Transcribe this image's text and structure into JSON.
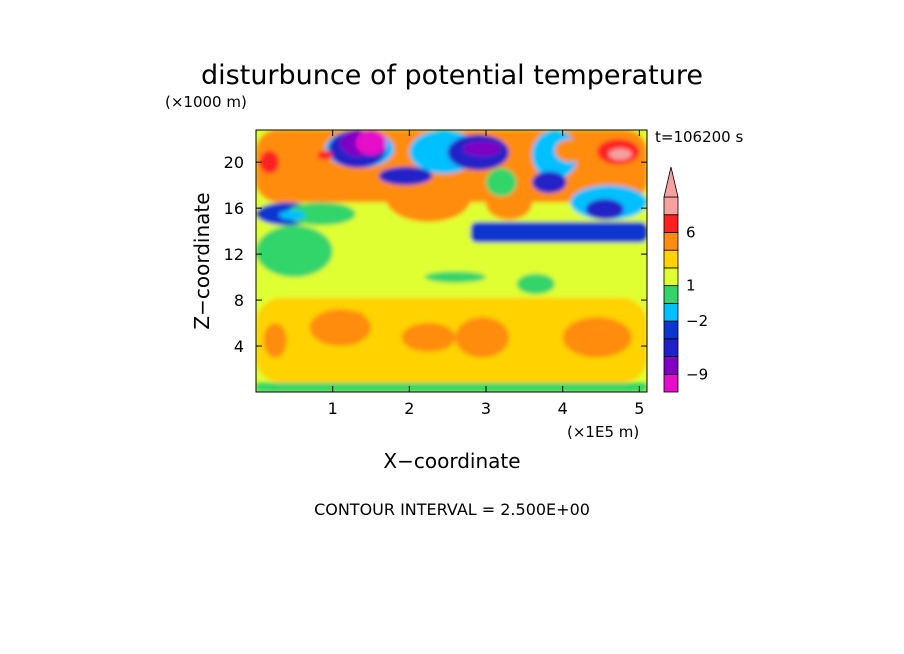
{
  "chart_data": {
    "type": "heatmap",
    "title": "disturbunce of potential temperature",
    "time_label": "t=106200 s",
    "xlabel": "X−coordinate",
    "ylabel": "Z−coordinate",
    "x_unit": "(×1E5 m)",
    "y_unit": "(×1000 m)",
    "footer": "CONTOUR INTERVAL = 2.500E+00",
    "x_ticks": [
      "1",
      "2",
      "3",
      "4",
      "5"
    ],
    "y_ticks": [
      "4",
      "8",
      "12",
      "16",
      "20"
    ],
    "x_tick_values": [
      1,
      2,
      3,
      4,
      5
    ],
    "y_tick_values": [
      4,
      8,
      12,
      16,
      20
    ],
    "xlim": [
      0,
      5.1
    ],
    "ylim": [
      0,
      22.8
    ],
    "x_extent_label": "0 to 5.1 (×1E5 m)",
    "colorbar": {
      "tick_labels": [
        "6",
        "1",
        "−2",
        "−9"
      ],
      "tick_values": [
        6,
        1,
        -2,
        -9
      ],
      "levels": [
        -11.5,
        -9,
        -6.5,
        -4,
        -2,
        -1,
        1,
        2,
        3.5,
        6,
        8.5
      ],
      "colors": [
        "#e60ecb",
        "#7f00c4",
        "#2020c8",
        "#0a36d0",
        "#00c0ff",
        "#33d56a",
        "#dfff30",
        "#ffd200",
        "#ff8c10",
        "#ff2020",
        "#f6a0a0"
      ],
      "extend": "max"
    },
    "colors": {
      "neg_magenta": "#e60ecb",
      "neg_purple": "#7f00c4",
      "neg_blue": "#0a36d0",
      "cyan": "#00c0ff",
      "green": "#33d56a",
      "yellow": "#dfff30",
      "orange": "#ff8c10",
      "red": "#ff2020",
      "pink": "#f6a0a0"
    },
    "regions": [
      {
        "level": 1.2,
        "x": [
          0,
          5.1
        ],
        "z": [
          0,
          22.8
        ]
      },
      {
        "level": 0,
        "x": [
          0,
          1.0
        ],
        "z": [
          10.0,
          14.5
        ]
      },
      {
        "level": 0,
        "x": [
          2.2,
          3.0
        ],
        "z": [
          9.5,
          10.5
        ]
      },
      {
        "level": 0,
        "x": [
          3.4,
          3.9
        ],
        "z": [
          8.5,
          10.3
        ]
      },
      {
        "level": 0,
        "x": [
          0,
          5.1
        ],
        "z": [
          0,
          0.8
        ]
      },
      {
        "level": 2.5,
        "x": [
          0,
          5.1
        ],
        "z": [
          0.8,
          8.2
        ]
      },
      {
        "level": 3.5,
        "x": [
          0.7,
          1.5
        ],
        "z": [
          4.0,
          7.2
        ]
      },
      {
        "level": 3.5,
        "x": [
          1.9,
          2.6
        ],
        "z": [
          3.5,
          6.0
        ]
      },
      {
        "level": 3.5,
        "x": [
          2.6,
          3.3
        ],
        "z": [
          3.0,
          6.5
        ]
      },
      {
        "level": 3.5,
        "x": [
          4.0,
          4.9
        ],
        "z": [
          3.0,
          6.5
        ]
      },
      {
        "level": 3.5,
        "x": [
          0.1,
          0.4
        ],
        "z": [
          3.0,
          6.0
        ]
      },
      {
        "level": 4.5,
        "x": [
          1.2,
          1.4
        ],
        "z": [
          6.2,
          7.0
        ]
      },
      {
        "level": -2.2,
        "x": [
          2.8,
          5.1
        ],
        "z": [
          13.0,
          14.8
        ]
      },
      {
        "level": -2.2,
        "x": [
          0,
          0.8
        ],
        "z": [
          14.5,
          16.5
        ]
      },
      {
        "level": 0,
        "x": [
          0.4,
          1.3
        ],
        "z": [
          14.5,
          16.5
        ]
      },
      {
        "level": 3.5,
        "x": [
          0,
          5.1
        ],
        "z": [
          16.5,
          22.8
        ]
      },
      {
        "level": 5.0,
        "x": [
          0.1,
          0.7
        ],
        "z": [
          17.5,
          21.0
        ]
      },
      {
        "level": 5.0,
        "x": [
          1.7,
          2.8
        ],
        "z": [
          14.8,
          18.8
        ]
      },
      {
        "level": 5.0,
        "x": [
          3.0,
          3.6
        ],
        "z": [
          15.0,
          17.8
        ]
      },
      {
        "level": -1.5,
        "x": [
          0.9,
          1.8
        ],
        "z": [
          19.5,
          22.8
        ]
      },
      {
        "level": -1.5,
        "x": [
          2.0,
          2.9
        ],
        "z": [
          19.0,
          22.8
        ]
      },
      {
        "level": -1.5,
        "x": [
          3.6,
          4.2
        ],
        "z": [
          18.5,
          22.8
        ]
      },
      {
        "level": -1.5,
        "x": [
          4.1,
          5.1
        ],
        "z": [
          15.0,
          18.0
        ]
      },
      {
        "level": -5.0,
        "x": [
          0.95,
          1.7
        ],
        "z": [
          19.5,
          22.8
        ]
      },
      {
        "level": -5.0,
        "x": [
          1.6,
          2.3
        ],
        "z": [
          18.0,
          19.6
        ]
      },
      {
        "level": -5.0,
        "x": [
          2.5,
          3.3
        ],
        "z": [
          19.3,
          22.4
        ]
      },
      {
        "level": -5.0,
        "x": [
          3.6,
          4.05
        ],
        "z": [
          17.3,
          19.2
        ]
      },
      {
        "level": -5.0,
        "x": [
          4.3,
          4.8
        ],
        "z": [
          15.0,
          16.8
        ]
      },
      {
        "level": -8.0,
        "x": [
          1.1,
          1.55
        ],
        "z": [
          20.5,
          22.8
        ]
      },
      {
        "level": -8.0,
        "x": [
          2.7,
          3.2
        ],
        "z": [
          20.5,
          21.8
        ]
      },
      {
        "level": -10.5,
        "x": [
          1.3,
          1.7
        ],
        "z": [
          20.6,
          22.8
        ]
      },
      {
        "level": -1.5,
        "x": [
          0.3,
          0.65
        ],
        "z": [
          15.0,
          15.8
        ]
      },
      {
        "level": 0,
        "x": [
          3.0,
          3.4
        ],
        "z": [
          17.0,
          19.5
        ]
      },
      {
        "level": 5.0,
        "x": [
          4.35,
          5.1
        ],
        "z": [
          19.0,
          22.8
        ]
      },
      {
        "level": 7.0,
        "x": [
          4.45,
          5.0
        ],
        "z": [
          19.8,
          22.0
        ]
      },
      {
        "level": 9.0,
        "x": [
          4.6,
          4.9
        ],
        "z": [
          20.2,
          21.2
        ]
      },
      {
        "level": 7.0,
        "x": [
          0.05,
          0.3
        ],
        "z": [
          19.0,
          21.0
        ]
      },
      {
        "level": 7.0,
        "x": [
          0.8,
          1.0
        ],
        "z": [
          20.2,
          21.0
        ]
      },
      {
        "level": 5.0,
        "x": [
          3.9,
          4.3
        ],
        "z": [
          20.0,
          22.0
        ]
      }
    ]
  }
}
